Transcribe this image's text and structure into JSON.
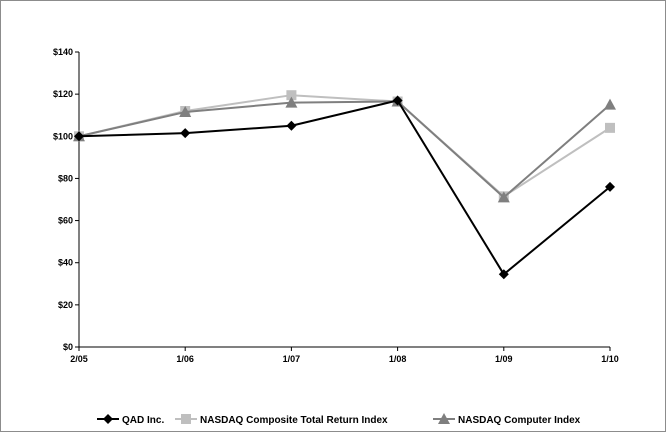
{
  "chart_data": {
    "type": "line",
    "title": "",
    "xlabel": "",
    "ylabel": "",
    "categories": [
      "2/05",
      "1/06",
      "1/07",
      "1/08",
      "1/09",
      "1/10"
    ],
    "ylim": [
      0,
      140
    ],
    "y_ticks": [
      0,
      20,
      40,
      60,
      80,
      100,
      120,
      140
    ],
    "y_tick_labels": [
      "$0",
      "$20",
      "$40",
      "$60",
      "$80",
      "$100",
      "$120",
      "$140"
    ],
    "grid": false,
    "legend_position": "bottom",
    "series": [
      {
        "name": "QAD Inc.",
        "values": [
          100,
          101.5,
          105,
          117,
          34.5,
          76
        ],
        "color": "#000000",
        "marker": "diamond"
      },
      {
        "name": "NASDAQ Composite Total Return Index",
        "values": [
          100,
          112,
          119.5,
          116.5,
          71.5,
          104
        ],
        "color": "#bfbfbf",
        "marker": "square"
      },
      {
        "name": "NASDAQ Computer Index",
        "values": [
          100,
          111.5,
          116,
          116.5,
          71,
          115
        ],
        "color": "#7f7f7f",
        "marker": "triangle"
      }
    ]
  }
}
